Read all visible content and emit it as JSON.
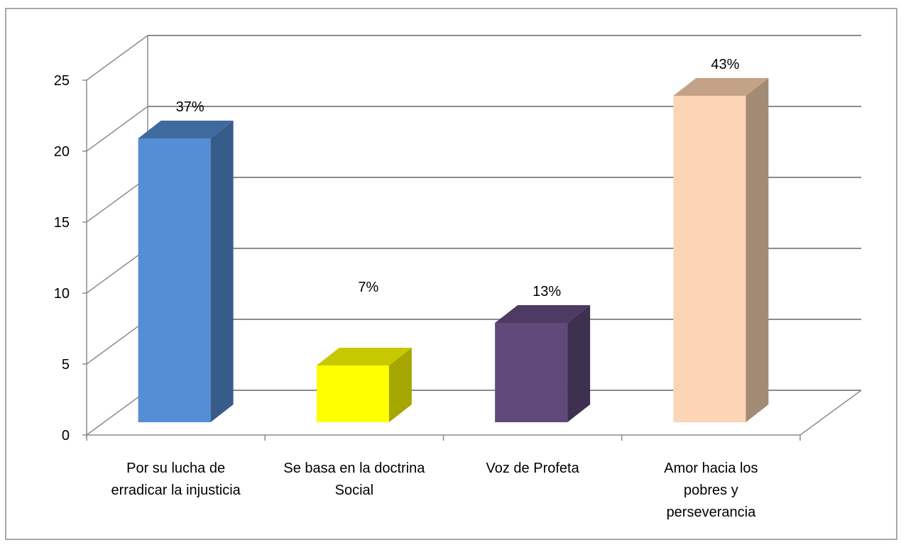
{
  "chart_data": {
    "type": "bar",
    "title": "",
    "xlabel": "",
    "ylabel": "",
    "ylim": [
      0,
      25
    ],
    "yticks": [
      0,
      5,
      10,
      15,
      20,
      25
    ],
    "grid": true,
    "style": "3d-column",
    "legend": "none",
    "categories": [
      [
        "Por su lucha de",
        "erradicar la injusticia"
      ],
      [
        "Se basa en la doctrina",
        "Social"
      ],
      [
        "Voz de Profeta"
      ],
      [
        "Amor hacia los",
        "pobres y",
        "perseverancia"
      ]
    ],
    "values": [
      20,
      4,
      7,
      23
    ],
    "data_labels": [
      "37%",
      "7%",
      "13%",
      "43%"
    ],
    "colors": [
      {
        "front": "#558ED5",
        "side": "#375C8A",
        "top": "#3F6AA0"
      },
      {
        "front": "#FFFF00",
        "side": "#A6A600",
        "top": "#C8C800"
      },
      {
        "front": "#604A7B",
        "side": "#3E3050",
        "top": "#4D3B63"
      },
      {
        "front": "#FCD5B5",
        "side": "#A38A75",
        "top": "#C4A287"
      }
    ]
  }
}
